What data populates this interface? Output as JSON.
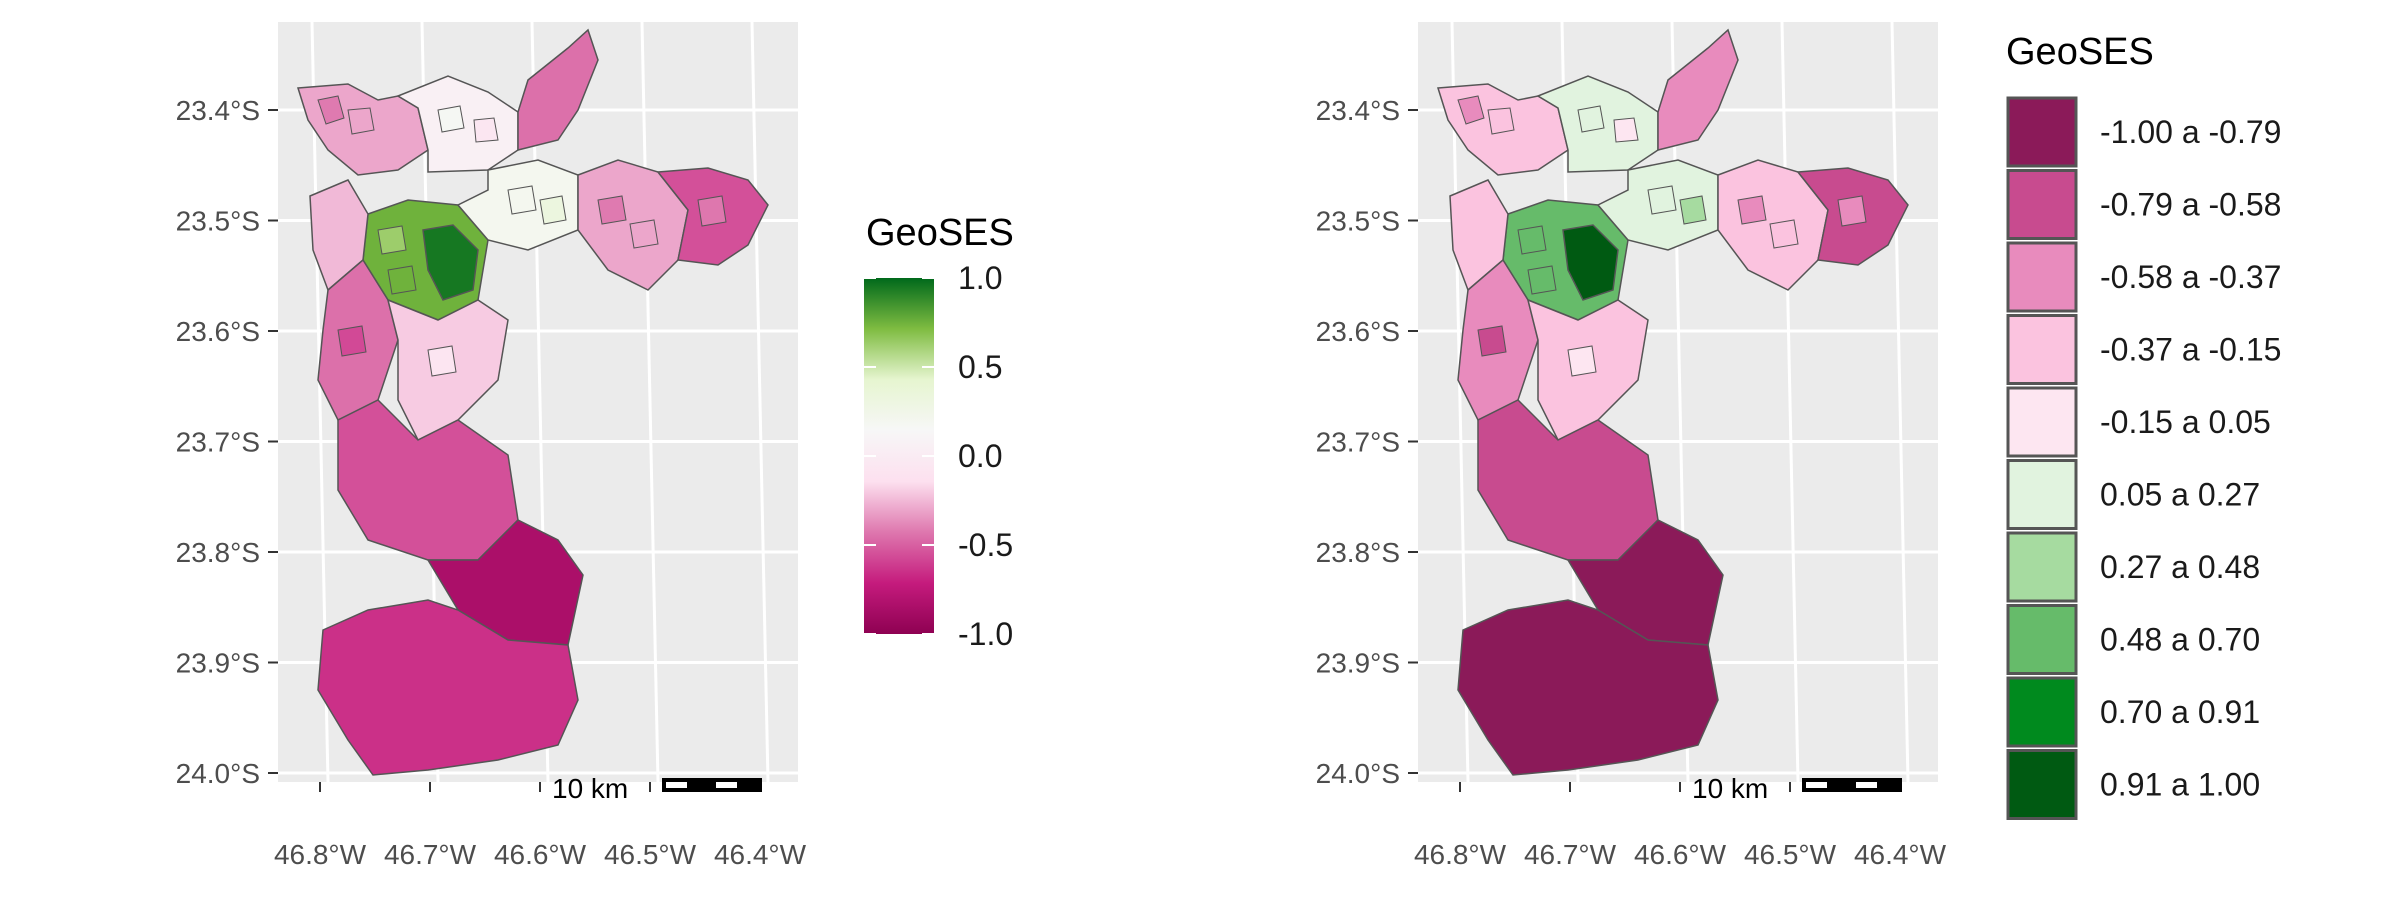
{
  "colors": {
    "panel_background": "#ebebeb",
    "grid_line": "#ffffff",
    "region_border": "#555555",
    "gradient_stops": [
      "#8e0152",
      "#c51b7d",
      "#de77ae",
      "#fde0ef",
      "#f7f7f7",
      "#e6f5d0",
      "#7fbc41",
      "#00691b"
    ]
  },
  "axes": {
    "y_ticks": [
      "23.4°S",
      "23.5°S",
      "23.6°S",
      "23.7°S",
      "23.8°S",
      "23.9°S",
      "24.0°S"
    ],
    "x_ticks": [
      "46.8°W",
      "46.7°W",
      "46.6°W",
      "46.5°W",
      "46.4°W"
    ]
  },
  "scale_bar": {
    "label": "10 km"
  },
  "maps": [
    {
      "name": "continuous",
      "legend": {
        "title": "GeoSES",
        "type": "colorbar",
        "range": [
          -1.0,
          1.0
        ],
        "ticks": [
          "1.0",
          "0.5",
          "0.0",
          "-0.5",
          "-1.0"
        ]
      },
      "districts": [
        {
          "region": "north-west",
          "value": -0.3
        },
        {
          "region": "north-centre",
          "value": 0.05
        },
        {
          "region": "north-east-tip",
          "value": -0.45
        },
        {
          "region": "centre",
          "value": 0.75
        },
        {
          "region": "centre-core",
          "value": 0.95
        },
        {
          "region": "centre-east",
          "value": 0.2
        },
        {
          "region": "east",
          "value": -0.3
        },
        {
          "region": "far-east",
          "value": -0.55
        },
        {
          "region": "west",
          "value": -0.25
        },
        {
          "region": "south-west-upper",
          "value": -0.45
        },
        {
          "region": "south-centre",
          "value": -0.2
        },
        {
          "region": "south-middle",
          "value": -0.55
        },
        {
          "region": "south-band",
          "value": -0.85
        },
        {
          "region": "far-south",
          "value": -0.65
        }
      ]
    },
    {
      "name": "categorical",
      "legend": {
        "title": "GeoSES",
        "type": "categories",
        "items": [
          {
            "label": "-1.00 a -0.79",
            "color": "#8b1a59"
          },
          {
            "label": "-0.79 a -0.58",
            "color": "#c84b8f"
          },
          {
            "label": "-0.58 a -0.37",
            "color": "#e88bbd"
          },
          {
            "label": "-0.37 a -0.15",
            "color": "#fbc3df"
          },
          {
            "label": "-0.15 a 0.05",
            "color": "#fde6f1"
          },
          {
            "label": "0.05 a 0.27",
            "color": "#e1f3df"
          },
          {
            "label": "0.27 a 0.48",
            "color": "#a6dba0"
          },
          {
            "label": "0.48 a 0.70",
            "color": "#66bb6a"
          },
          {
            "label": "0.70 a 0.91",
            "color": "#008a1e"
          },
          {
            "label": "0.91 a 1.00",
            "color": "#005a12"
          }
        ]
      },
      "districts": [
        {
          "region": "north-west",
          "value": -0.35
        },
        {
          "region": "north-centre",
          "value": 0.05
        },
        {
          "region": "north-east-tip",
          "value": -0.45
        },
        {
          "region": "centre",
          "value": 0.6
        },
        {
          "region": "centre-core",
          "value": 0.95
        },
        {
          "region": "centre-east",
          "value": 0.2
        },
        {
          "region": "east",
          "value": -0.3
        },
        {
          "region": "far-east",
          "value": -0.65
        },
        {
          "region": "west",
          "value": -0.25
        },
        {
          "region": "south-west-upper",
          "value": -0.5
        },
        {
          "region": "south-centre",
          "value": -0.2
        },
        {
          "region": "south-middle",
          "value": -0.65
        },
        {
          "region": "south-band",
          "value": -0.9
        },
        {
          "region": "far-south",
          "value": -0.9
        }
      ]
    }
  ]
}
